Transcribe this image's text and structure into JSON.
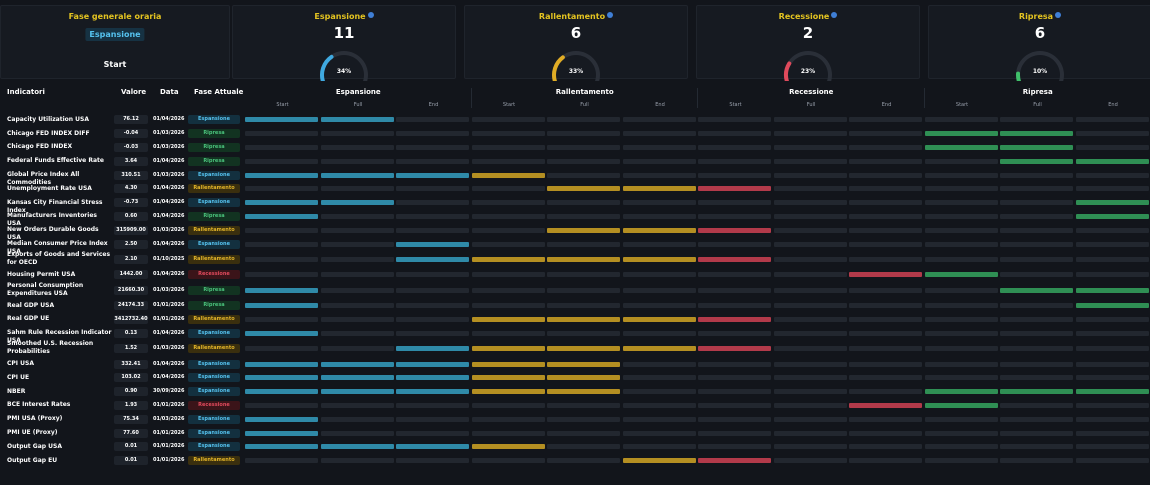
{
  "phase_card": {
    "title": "Fase generale oraria",
    "badge": "Espansione",
    "start": "Start"
  },
  "stats": [
    {
      "title": "Espansione",
      "count": "11",
      "pct_label": "34%",
      "fraction": 0.34,
      "color": "#3fa9e0"
    },
    {
      "title": "Rallentamento",
      "count": "6",
      "pct_label": "33%",
      "fraction": 0.33,
      "color": "#e0ac25"
    },
    {
      "title": "Recessione",
      "count": "2",
      "pct_label": "23%",
      "fraction": 0.23,
      "color": "#e04a5c"
    },
    {
      "title": "Ripresa",
      "count": "6",
      "pct_label": "10%",
      "fraction": 0.1,
      "color": "#3fbf6a"
    }
  ],
  "columns": {
    "indicatori": "Indicatori",
    "valore": "Valore",
    "data": "Data",
    "fase": "Fase Attuale"
  },
  "phases": [
    "Espansione",
    "Rallentamento",
    "Recessione",
    "Ripresa"
  ],
  "subphases": [
    "Start",
    "Full",
    "End"
  ],
  "rows": [
    {
      "name": "Capacity Utilization USA",
      "value": "76.12",
      "date": "01/04/2026",
      "phase": "Espansione",
      "on": [
        0,
        1
      ]
    },
    {
      "name": "Chicago FED INDEX DIFF",
      "value": "-0.04",
      "date": "01/03/2026",
      "phase": "Ripresa",
      "on": [
        9,
        10
      ]
    },
    {
      "name": "Chicago FED INDEX",
      "value": "-0.03",
      "date": "01/03/2026",
      "phase": "Ripresa",
      "on": [
        9,
        10
      ]
    },
    {
      "name": "Federal Funds Effective Rate",
      "value": "3.64",
      "date": "01/04/2026",
      "phase": "Ripresa",
      "on": [
        10,
        11
      ]
    },
    {
      "name": "Global Price Index All Commodities",
      "value": "310.51",
      "date": "01/03/2026",
      "phase": "Espansione",
      "on": [
        0,
        1,
        2,
        3
      ]
    },
    {
      "name": "Unemployment Rate USA",
      "value": "4.30",
      "date": "01/04/2026",
      "phase": "Rallentamento",
      "on": [
        4,
        5,
        6
      ]
    },
    {
      "name": "Kansas City Financial Stress Index",
      "value": "-0.73",
      "date": "01/04/2026",
      "phase": "Espansione",
      "on": [
        0,
        1,
        11
      ]
    },
    {
      "name": "Manufacturers Inventories USA",
      "value": "0.60",
      "date": "01/04/2026",
      "phase": "Ripresa",
      "on": [
        0,
        11
      ]
    },
    {
      "name": "New Orders Durable Goods USA",
      "value": "315909.00",
      "date": "01/03/2026",
      "phase": "Rallentamento",
      "on": [
        4,
        5,
        6
      ]
    },
    {
      "name": "Median Consumer Price Index USA",
      "value": "2.50",
      "date": "01/04/2026",
      "phase": "Espansione",
      "on": [
        2
      ]
    },
    {
      "name": "Exports of Goods and Services for OECD",
      "value": "2.10",
      "date": "01/10/2025",
      "phase": "Rallentamento",
      "on": [
        2,
        3,
        4,
        5,
        6
      ]
    },
    {
      "name": "Housing Permit USA",
      "value": "1442.00",
      "date": "01/04/2026",
      "phase": "Recessione",
      "on": [
        8,
        9
      ]
    },
    {
      "name": "Personal Consumption Expenditures USA",
      "value": "21660.30",
      "date": "01/03/2026",
      "phase": "Ripresa",
      "on": [
        0,
        10,
        11
      ]
    },
    {
      "name": "Real GDP USA",
      "value": "24174.33",
      "date": "01/01/2026",
      "phase": "Ripresa",
      "on": [
        0,
        11
      ]
    },
    {
      "name": "Real GDP UE",
      "value": "3412732.40",
      "date": "01/01/2026",
      "phase": "Rallentamento",
      "on": [
        3,
        4,
        5,
        6
      ]
    },
    {
      "name": "Sahm Rule Recession Indicator USA",
      "value": "0.13",
      "date": "01/04/2026",
      "phase": "Espansione",
      "on": [
        0
      ]
    },
    {
      "name": "Smoothed U.S. Recession Probabilities",
      "value": "1.52",
      "date": "01/03/2026",
      "phase": "Rallentamento",
      "on": [
        2,
        3,
        4,
        5,
        6
      ]
    },
    {
      "name": "CPI USA",
      "value": "332.41",
      "date": "01/04/2026",
      "phase": "Espansione",
      "on": [
        0,
        1,
        2,
        3,
        4
      ]
    },
    {
      "name": "CPI UE",
      "value": "103.02",
      "date": "01/04/2026",
      "phase": "Espansione",
      "on": [
        0,
        1,
        2,
        3,
        4
      ]
    },
    {
      "name": "NBER",
      "value": "0.90",
      "date": "30/09/2026",
      "phase": "Espansione",
      "on": [
        0,
        1,
        2,
        3,
        4,
        9,
        10,
        11
      ]
    },
    {
      "name": "BCE Interest Rates",
      "value": "1.93",
      "date": "01/01/2026",
      "phase": "Recessione",
      "on": [
        8,
        9
      ]
    },
    {
      "name": "PMI USA (Proxy)",
      "value": "75.34",
      "date": "01/03/2026",
      "phase": "Espansione",
      "on": [
        0
      ]
    },
    {
      "name": "PMI UE (Proxy)",
      "value": "77.60",
      "date": "01/01/2026",
      "phase": "Espansione",
      "on": [
        0
      ]
    },
    {
      "name": "Output Gap USA",
      "value": "0.01",
      "date": "01/01/2026",
      "phase": "Espansione",
      "on": [
        0,
        1,
        2,
        3
      ]
    },
    {
      "name": "Output Gap EU",
      "value": "0.01",
      "date": "01/01/2026",
      "phase": "Rallentamento",
      "on": [
        5,
        6
      ]
    }
  ]
}
